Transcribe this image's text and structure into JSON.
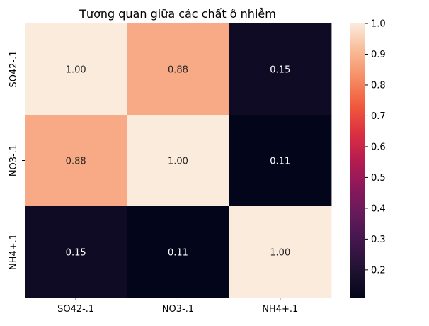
{
  "chart_data": {
    "type": "heatmap",
    "title": "Tương quan giữa các chất ô nhiễm",
    "x_labels": [
      "SO42-.1",
      "NO3-.1",
      "NH4+.1"
    ],
    "y_labels": [
      "SO42-.1",
      "NO3-.1",
      "NH4+.1"
    ],
    "values": [
      [
        1.0,
        0.88,
        0.15
      ],
      [
        0.88,
        1.0,
        0.11
      ],
      [
        0.15,
        0.11,
        1.0
      ]
    ],
    "cell_labels": [
      [
        "1.00",
        "0.88",
        "0.15"
      ],
      [
        "0.88",
        "1.00",
        "0.11"
      ],
      [
        "0.15",
        "0.11",
        "1.00"
      ]
    ],
    "colorbar": {
      "vmin": 0.11,
      "vmax": 1.0,
      "ticks": [
        0.2,
        0.3,
        0.4,
        0.5,
        0.6,
        0.7,
        0.8,
        0.9,
        1.0
      ],
      "tick_labels": [
        "0.2",
        "0.3",
        "0.4",
        "0.5",
        "0.6",
        "0.7",
        "0.8",
        "0.9",
        "1.0"
      ]
    },
    "colormap": "rocket",
    "legend": "colorbar-right"
  }
}
